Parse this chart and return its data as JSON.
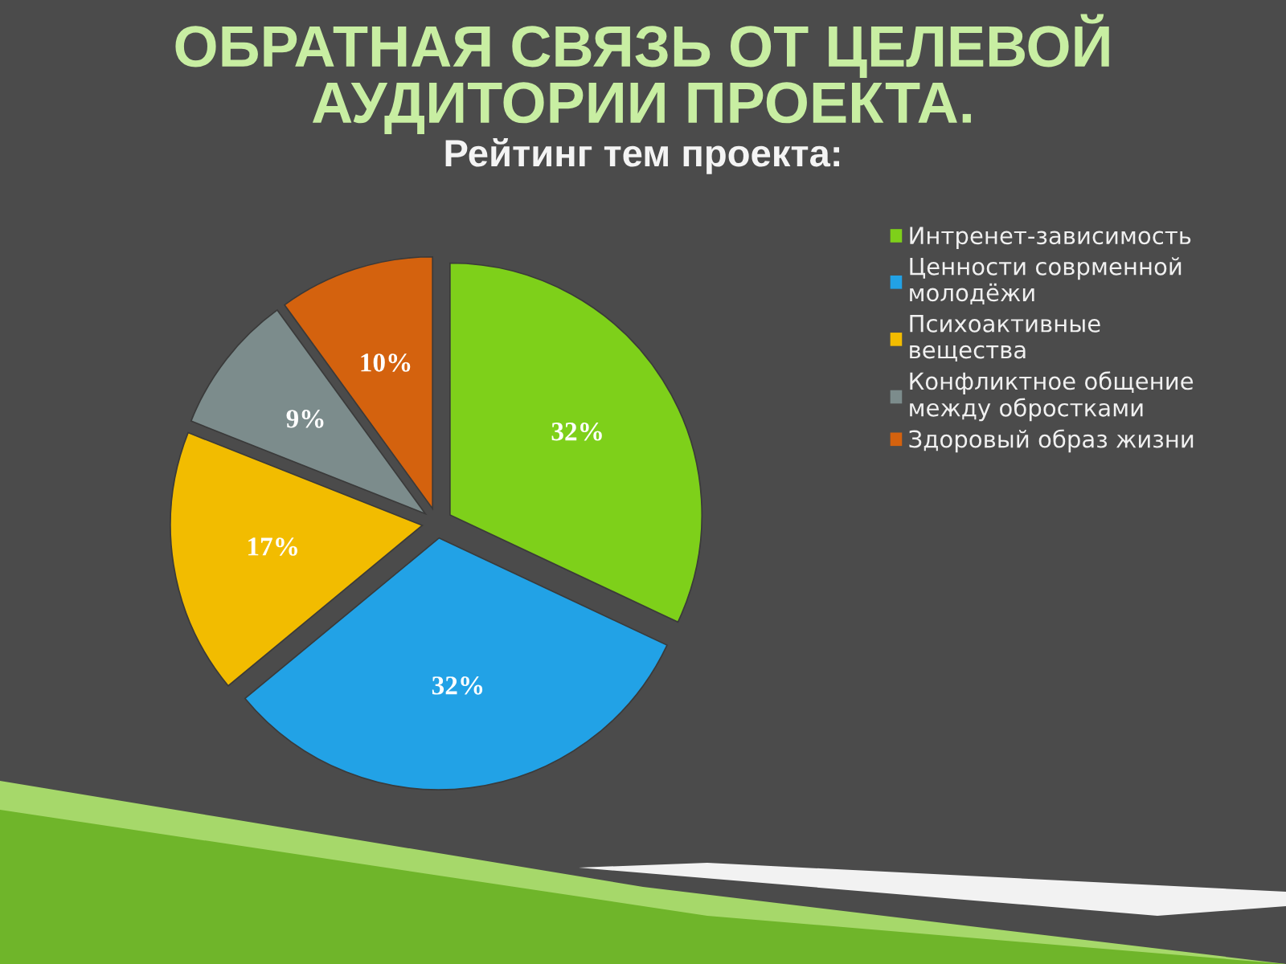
{
  "chart_data": {
    "type": "pie",
    "title": "ОБРАТНАЯ СВЯЗЬ ОТ ЦЕЛЕВОЙ АУДИТОРИИ ПРОЕКТА.",
    "subtitle": "Рейтинг тем проекта:",
    "categories": [
      "Интренет-зависимость",
      "Ценности соврменной молодёжи",
      "Психоактивные вещества",
      "Конфликтное общение между обростками",
      "Здоровый образ жизни"
    ],
    "values": [
      32,
      32,
      17,
      9,
      10
    ],
    "colors": [
      "#7ed01a",
      "#22a2e6",
      "#f2bc00",
      "#7c8c8c",
      "#d4620e"
    ],
    "value_labels": [
      "32%",
      "32%",
      "17%",
      "9%",
      "10%"
    ],
    "legend": "right"
  }
}
